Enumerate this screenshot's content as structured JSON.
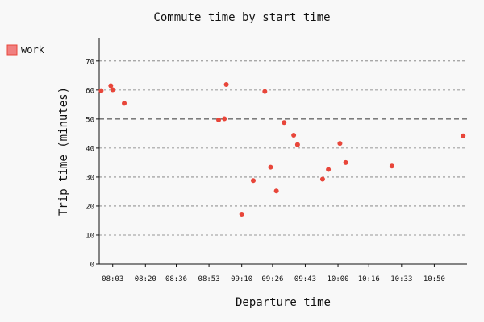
{
  "chart_data": {
    "type": "scatter",
    "title": "Commute time by start time",
    "xlabel": "Departure time",
    "ylabel": "Trip time (minutes)",
    "x_ticks": [
      "08:03",
      "08:20",
      "08:36",
      "08:53",
      "09:10",
      "09:26",
      "09:43",
      "10:00",
      "10:16",
      "10:33",
      "10:50"
    ],
    "y_ticks": [
      0,
      10,
      20,
      30,
      40,
      50,
      60,
      70
    ],
    "xlim": [
      "07:56",
      "11:07"
    ],
    "ylim": [
      0,
      78
    ],
    "grid": "horizontal-dashed",
    "reference_line": 50,
    "legend": {
      "position": "top-left",
      "entries": [
        "work"
      ]
    },
    "series": [
      {
        "name": "work",
        "color": "#e8463a",
        "points": [
          {
            "x": "07:57",
            "y": 59.8
          },
          {
            "x": "08:02",
            "y": 61.5
          },
          {
            "x": "08:03",
            "y": 60.1
          },
          {
            "x": "08:09",
            "y": 55.4
          },
          {
            "x": "08:58",
            "y": 49.7
          },
          {
            "x": "09:01",
            "y": 50.1
          },
          {
            "x": "09:02",
            "y": 61.9
          },
          {
            "x": "09:10",
            "y": 17.2
          },
          {
            "x": "09:16",
            "y": 28.8
          },
          {
            "x": "09:22",
            "y": 59.5
          },
          {
            "x": "09:25",
            "y": 33.4
          },
          {
            "x": "09:28",
            "y": 25.2
          },
          {
            "x": "09:32",
            "y": 48.8
          },
          {
            "x": "09:37",
            "y": 44.4
          },
          {
            "x": "09:39",
            "y": 41.2
          },
          {
            "x": "09:52",
            "y": 29.3
          },
          {
            "x": "09:55",
            "y": 32.6
          },
          {
            "x": "10:01",
            "y": 41.6
          },
          {
            "x": "10:04",
            "y": 35.0
          },
          {
            "x": "10:28",
            "y": 33.8
          },
          {
            "x": "11:05",
            "y": 44.2
          }
        ]
      }
    ]
  }
}
